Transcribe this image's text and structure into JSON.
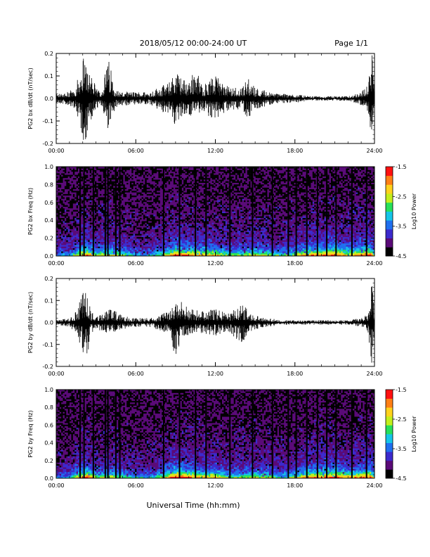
{
  "header": {
    "title": "2018/05/12   00:00-24:00 UT",
    "page": "Page 1/1"
  },
  "footer": {
    "xlabel": "Universal Time (hh:mm)"
  },
  "colors": {
    "trace": "#000000",
    "background": "#ffffff",
    "colormap": [
      "#000000",
      "#5a0a78",
      "#3c2acd",
      "#1f6fef",
      "#15c5e8",
      "#27e05a",
      "#c3ee1c",
      "#ffd21d",
      "#ff7f15",
      "#ff1010"
    ]
  },
  "chart_data": [
    {
      "type": "line",
      "ylabel": "PG2 bx dB/dt (nT/sec)",
      "xlim": [
        0,
        24
      ],
      "ylim": [
        -0.2,
        0.2
      ],
      "xticks": [
        "00:00",
        "06:00",
        "12:00",
        "18:00",
        "24:00"
      ],
      "yticks": [
        "-0.2",
        "-0.1",
        "0.0",
        "0.1",
        "0.2"
      ],
      "series": [
        {
          "x": [
            0,
            1,
            1.5,
            2,
            2.3,
            2.6,
            3,
            3.5,
            3.9,
            4.5,
            5,
            6,
            7,
            8,
            8.5,
            9,
            9.5,
            10,
            10.5,
            11,
            11.5,
            12,
            13,
            14,
            14.5,
            15,
            16,
            17,
            18,
            19,
            20,
            21,
            22,
            23,
            23.5,
            23.8,
            24
          ],
          "y_max": [
            0.02,
            0.03,
            0.06,
            0.18,
            0.16,
            0.14,
            0.04,
            0.05,
            0.19,
            0.04,
            0.03,
            0.03,
            0.03,
            0.06,
            0.07,
            0.13,
            0.09,
            0.08,
            0.14,
            0.06,
            0.08,
            0.1,
            0.05,
            0.05,
            0.09,
            0.05,
            0.03,
            0.02,
            0.02,
            0.01,
            0.01,
            0.01,
            0.01,
            0.03,
            0.06,
            0.2,
            0.1
          ],
          "y_min": [
            -0.02,
            -0.03,
            -0.05,
            -0.18,
            -0.2,
            -0.1,
            -0.04,
            -0.05,
            -0.14,
            -0.04,
            -0.03,
            -0.03,
            -0.03,
            -0.06,
            -0.07,
            -0.13,
            -0.08,
            -0.08,
            -0.08,
            -0.06,
            -0.08,
            -0.09,
            -0.05,
            -0.05,
            -0.09,
            -0.05,
            -0.03,
            -0.02,
            -0.02,
            -0.01,
            -0.01,
            -0.01,
            -0.01,
            -0.03,
            -0.06,
            -0.2,
            -0.1
          ]
        }
      ]
    },
    {
      "type": "heatmap",
      "ylabel": "PG2 bx Freq (Hz)",
      "xlim": [
        0,
        24
      ],
      "ylim": [
        0,
        1
      ],
      "xticks": [
        "00:00",
        "06:00",
        "12:00",
        "18:00",
        "24:00"
      ],
      "yticks": [
        "0.0",
        "0.2",
        "0.4",
        "0.6",
        "0.8",
        "1.0"
      ],
      "colorbar": {
        "label": "Log10 Power",
        "range": [
          -4.5,
          -1.5
        ],
        "ticks": [
          "-1.5",
          "-2.5",
          "-3.5",
          "-4.5"
        ]
      },
      "x_activity": [
        0,
        1,
        2,
        2.5,
        3,
        4,
        5,
        6,
        7,
        8,
        9,
        10,
        11,
        12,
        13,
        14,
        15,
        16,
        17,
        18,
        19,
        20,
        21,
        22,
        23,
        23.7,
        24
      ],
      "activity": [
        0.15,
        0.2,
        0.45,
        0.45,
        0.3,
        0.35,
        0.3,
        0.2,
        0.2,
        0.3,
        0.55,
        0.45,
        0.4,
        0.4,
        0.3,
        0.3,
        0.35,
        0.3,
        0.25,
        0.3,
        0.45,
        0.45,
        0.5,
        0.4,
        0.45,
        0.55,
        0.3
      ],
      "gaps": [
        1.8,
        2.1,
        2.8,
        3.7,
        3.9,
        4.5,
        4.8,
        8.1,
        9.3,
        10.5,
        11.3,
        13.1,
        14.8,
        16.3,
        17.5,
        18.1,
        18.9,
        19.7,
        20.4,
        21.1,
        22.3,
        23.4
      ]
    },
    {
      "type": "line",
      "ylabel": "PG2 by dB/dt (nT/sec)",
      "xlim": [
        0,
        24
      ],
      "ylim": [
        -0.2,
        0.2
      ],
      "xticks": [
        "00:00",
        "06:00",
        "12:00",
        "18:00",
        "24:00"
      ],
      "yticks": [
        "-0.2",
        "-0.1",
        "0.0",
        "0.1",
        "0.2"
      ],
      "series": [
        {
          "x": [
            0,
            1,
            1.5,
            2,
            2.3,
            2.6,
            3,
            3.5,
            4,
            4.5,
            5,
            6,
            7,
            8,
            8.5,
            9,
            9.5,
            10,
            10.5,
            11,
            11.5,
            12,
            13,
            14,
            14.5,
            15,
            16,
            17,
            18,
            19,
            20,
            21,
            22,
            23,
            23.5,
            23.8,
            24
          ],
          "y_max": [
            0.01,
            0.02,
            0.05,
            0.13,
            0.17,
            0.05,
            0.03,
            0.05,
            0.06,
            0.05,
            0.03,
            0.02,
            0.02,
            0.04,
            0.05,
            0.09,
            0.1,
            0.06,
            0.06,
            0.05,
            0.06,
            0.06,
            0.04,
            0.08,
            0.06,
            0.03,
            0.02,
            0.01,
            0.01,
            0.01,
            0.01,
            0.01,
            0.01,
            0.02,
            0.04,
            0.2,
            0.06
          ],
          "y_min": [
            -0.01,
            -0.02,
            -0.05,
            -0.13,
            -0.19,
            -0.05,
            -0.03,
            -0.04,
            -0.05,
            -0.04,
            -0.03,
            -0.02,
            -0.02,
            -0.04,
            -0.05,
            -0.17,
            -0.08,
            -0.07,
            -0.06,
            -0.05,
            -0.06,
            -0.06,
            -0.04,
            -0.1,
            -0.06,
            -0.03,
            -0.02,
            -0.01,
            -0.01,
            -0.01,
            -0.01,
            -0.01,
            -0.01,
            -0.02,
            -0.04,
            -0.2,
            -0.06
          ]
        }
      ]
    },
    {
      "type": "heatmap",
      "ylabel": "PG2 by Freq (Hz)",
      "xlim": [
        0,
        24
      ],
      "ylim": [
        0,
        1
      ],
      "xticks": [
        "00:00",
        "06:00",
        "12:00",
        "18:00",
        "24:00"
      ],
      "yticks": [
        "0.0",
        "0.2",
        "0.4",
        "0.6",
        "0.8",
        "1.0"
      ],
      "colorbar": {
        "label": "Log10 Power",
        "range": [
          -4.5,
          -1.5
        ],
        "ticks": [
          "-1.5",
          "-2.5",
          "-3.5",
          "-4.5"
        ]
      },
      "x_activity": [
        0,
        1,
        2,
        2.5,
        3,
        4,
        5,
        6,
        7,
        8,
        9,
        10,
        11,
        12,
        13,
        14,
        15,
        16,
        17,
        18,
        19,
        20,
        21,
        22,
        23,
        23.7,
        24
      ],
      "activity": [
        0.15,
        0.2,
        0.45,
        0.5,
        0.3,
        0.35,
        0.3,
        0.2,
        0.2,
        0.3,
        0.55,
        0.5,
        0.4,
        0.4,
        0.3,
        0.3,
        0.35,
        0.3,
        0.25,
        0.3,
        0.45,
        0.5,
        0.5,
        0.4,
        0.45,
        0.55,
        0.3
      ],
      "gaps": [
        1.8,
        2.1,
        2.8,
        3.7,
        3.9,
        4.5,
        4.8,
        8.1,
        9.3,
        10.5,
        11.3,
        13.1,
        14.8,
        16.3,
        17.5,
        18.1,
        18.9,
        19.7,
        20.4,
        21.1,
        22.3,
        23.4
      ]
    }
  ]
}
